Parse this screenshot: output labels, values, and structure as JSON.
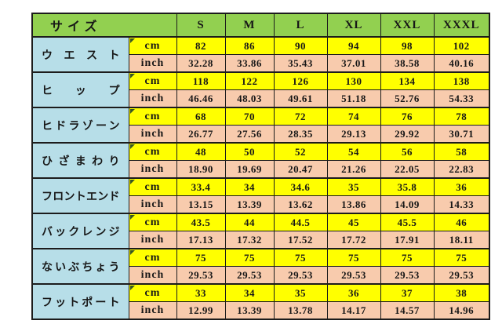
{
  "chart_data": {
    "type": "table",
    "title": "サイズ",
    "size_columns": [
      "S",
      "M",
      "L",
      "XL",
      "XXL",
      "XXXL"
    ],
    "unit_row_labels": [
      "cm",
      "inch"
    ],
    "measurements": [
      {
        "label": "ウエスト",
        "cm": [
          "82",
          "86",
          "90",
          "94",
          "98",
          "102"
        ],
        "inch": [
          "32.28",
          "33.86",
          "35.43",
          "37.01",
          "38.58",
          "40.16"
        ]
      },
      {
        "label": "ヒップ",
        "cm": [
          "118",
          "122",
          "126",
          "130",
          "134",
          "138"
        ],
        "inch": [
          "46.46",
          "48.03",
          "49.61",
          "51.18",
          "52.76",
          "54.33"
        ]
      },
      {
        "label": "ヒドラゾーン",
        "cm": [
          "68",
          "70",
          "72",
          "74",
          "76",
          "78"
        ],
        "inch": [
          "26.77",
          "27.56",
          "28.35",
          "29.13",
          "29.92",
          "30.71"
        ]
      },
      {
        "label": "ひざまわり",
        "cm": [
          "48",
          "50",
          "52",
          "54",
          "56",
          "58"
        ],
        "inch": [
          "18.90",
          "19.69",
          "20.47",
          "21.26",
          "22.05",
          "22.83"
        ]
      },
      {
        "label": "フロントエンド",
        "cm": [
          "33.4",
          "34",
          "34.6",
          "35",
          "35.8",
          "36"
        ],
        "inch": [
          "13.15",
          "13.39",
          "13.62",
          "13.86",
          "14.09",
          "14.33"
        ]
      },
      {
        "label": "バックレンジ",
        "cm": [
          "43.5",
          "44",
          "44.5",
          "45",
          "45.5",
          "46"
        ],
        "inch": [
          "17.13",
          "17.32",
          "17.52",
          "17.72",
          "17.91",
          "18.11"
        ]
      },
      {
        "label": "ないぶちょう",
        "cm": [
          "75",
          "75",
          "75",
          "75",
          "75",
          "75"
        ],
        "inch": [
          "29.53",
          "29.53",
          "29.53",
          "29.53",
          "29.53",
          "29.53"
        ]
      },
      {
        "label": "フットポート",
        "cm": [
          "33",
          "34",
          "35",
          "36",
          "37",
          "38"
        ],
        "inch": [
          "12.99",
          "13.39",
          "13.78",
          "14.17",
          "14.57",
          "14.96"
        ]
      }
    ],
    "layout_hints": {
      "header_fill": "#92D050",
      "label_column_fill": "#B7DEE8",
      "cm_row_fill": "#FFFF00",
      "inch_row_fill": "#F8CBAD",
      "border_color": "#1c1c1c",
      "corner_marker_color": "#375623"
    }
  }
}
